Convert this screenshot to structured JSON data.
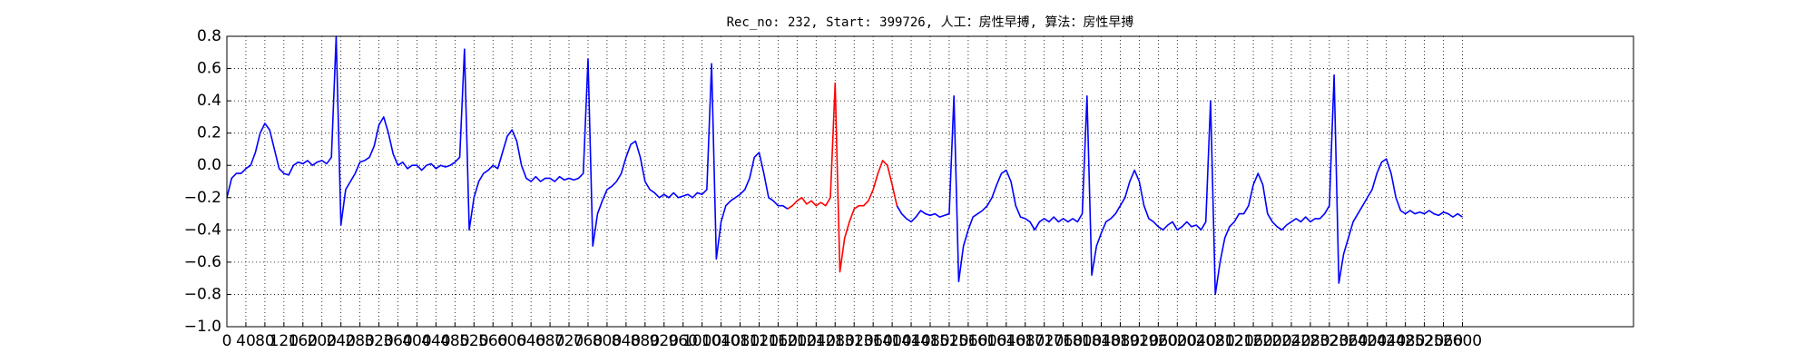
{
  "chart_data": {
    "type": "line",
    "title": "Rec_no: 232, Start: 399726, 人工：房性早搏, 算法：房性早搏",
    "x": [
      0,
      10,
      20,
      30,
      40,
      50,
      60,
      70,
      80,
      90,
      100,
      110,
      120,
      130,
      140,
      150,
      160,
      170,
      180,
      190,
      200,
      210,
      220,
      230,
      240,
      250,
      260,
      270,
      280,
      290,
      300,
      310,
      320,
      330,
      340,
      350,
      360,
      370,
      380,
      390,
      400,
      410,
      420,
      430,
      440,
      450,
      460,
      470,
      480,
      490,
      500,
      510,
      520,
      530,
      540,
      550,
      560,
      570,
      580,
      590,
      600,
      610,
      620,
      630,
      640,
      650,
      660,
      670,
      680,
      690,
      700,
      710,
      720,
      730,
      740,
      750,
      760,
      770,
      780,
      790,
      800,
      810,
      820,
      830,
      840,
      850,
      860,
      870,
      880,
      890,
      900,
      910,
      920,
      930,
      940,
      950,
      960,
      970,
      980,
      990,
      1000,
      1010,
      1020,
      1030,
      1040,
      1050,
      1060,
      1070,
      1080,
      1090,
      1100,
      1110,
      1120,
      1130,
      1140,
      1150,
      1160,
      1170,
      1180,
      1190,
      1200,
      1210,
      1220,
      1230,
      1240,
      1250,
      1260,
      1270,
      1280,
      1290,
      1300,
      1310,
      1320,
      1330,
      1340,
      1350,
      1360,
      1370,
      1380,
      1390,
      1400,
      1410,
      1420,
      1430,
      1440,
      1450,
      1460,
      1470,
      1480,
      1490,
      1500,
      1510,
      1520,
      1530,
      1540,
      1550,
      1560,
      1570,
      1580,
      1590,
      1600,
      1610,
      1620,
      1630,
      1640,
      1650,
      1660,
      1670,
      1680,
      1690,
      1700,
      1710,
      1720,
      1730,
      1740,
      1750,
      1760,
      1770,
      1780,
      1790,
      1800,
      1810,
      1820,
      1830,
      1840,
      1850,
      1860,
      1870,
      1880,
      1890,
      1900,
      1910,
      1920,
      1930,
      1940,
      1950,
      1960,
      1970,
      1980,
      1990,
      2000,
      2010,
      2020,
      2030,
      2040,
      2050,
      2060,
      2070,
      2080,
      2090,
      2100,
      2110,
      2120,
      2130,
      2140,
      2150,
      2160,
      2170,
      2180,
      2190,
      2200,
      2210,
      2220,
      2230,
      2240,
      2250,
      2260,
      2270,
      2280,
      2290,
      2300,
      2310,
      2320,
      2330,
      2340,
      2350,
      2360,
      2370,
      2380,
      2390,
      2400,
      2410,
      2420,
      2430,
      2440,
      2450,
      2460,
      2470,
      2480,
      2490,
      2500,
      2510,
      2520,
      2530,
      2540,
      2550,
      2560,
      2570,
      2580,
      2590,
      2600
    ],
    "series": [
      {
        "color": "#0000ff",
        "values": [
          -0.2,
          -0.08,
          -0.05,
          -0.05,
          -0.02,
          0.0,
          0.08,
          0.2,
          0.26,
          0.22,
          0.1,
          -0.02,
          -0.05,
          -0.06,
          0.0,
          0.02,
          0.01,
          0.03,
          0.0,
          0.02,
          0.03,
          0.01,
          0.05,
          0.8,
          -0.37,
          -0.15,
          -0.1,
          -0.05,
          0.02,
          0.03,
          0.05,
          0.12,
          0.25,
          0.3,
          0.2,
          0.07,
          0.0,
          0.02,
          -0.02,
          0.0,
          0.0,
          -0.03,
          0.0,
          0.01,
          -0.02,
          0.0,
          -0.01,
          0.0,
          0.02,
          0.05,
          0.72,
          -0.4,
          -0.2,
          -0.1,
          -0.05,
          -0.03,
          0.0,
          -0.02,
          0.08,
          0.18,
          0.22,
          0.15,
          0.0,
          -0.08,
          -0.1,
          -0.07,
          -0.1,
          -0.08,
          -0.08,
          -0.1,
          -0.07,
          -0.09,
          -0.08,
          -0.09,
          -0.08,
          -0.05,
          0.66,
          -0.5,
          -0.3,
          -0.22,
          -0.15,
          -0.13,
          -0.1,
          -0.05,
          0.05,
          0.13,
          0.15,
          0.05,
          -0.1,
          -0.15,
          -0.17,
          -0.2,
          -0.18,
          -0.2,
          -0.17,
          -0.2,
          -0.19,
          -0.18,
          -0.2,
          -0.17,
          -0.18,
          -0.15,
          0.63,
          -0.58,
          -0.35,
          -0.25,
          -0.22,
          -0.2,
          -0.18,
          -0.15,
          -0.08,
          0.05,
          0.08,
          -0.05,
          -0.2,
          -0.22,
          -0.25,
          -0.25,
          -0.27,
          null,
          null,
          null,
          null,
          null,
          null,
          null,
          null,
          null,
          null,
          null,
          null,
          null,
          null,
          null,
          null,
          null,
          null,
          null,
          null,
          null,
          null,
          -0.25,
          -0.3,
          -0.33,
          -0.35,
          -0.32,
          -0.28,
          -0.3,
          -0.31,
          -0.3,
          -0.32,
          -0.31,
          -0.3,
          0.43,
          -0.72,
          -0.5,
          -0.4,
          -0.32,
          -0.3,
          -0.28,
          -0.25,
          -0.2,
          -0.12,
          -0.05,
          -0.03,
          -0.1,
          -0.25,
          -0.32,
          -0.33,
          -0.35,
          -0.4,
          -0.35,
          -0.33,
          -0.35,
          -0.32,
          -0.35,
          -0.33,
          -0.35,
          -0.33,
          -0.35,
          -0.3,
          0.43,
          -0.68,
          -0.5,
          -0.42,
          -0.35,
          -0.33,
          -0.3,
          -0.25,
          -0.2,
          -0.1,
          -0.03,
          -0.1,
          -0.25,
          -0.33,
          -0.35,
          -0.38,
          -0.4,
          -0.37,
          -0.35,
          -0.4,
          -0.38,
          -0.35,
          -0.38,
          -0.37,
          -0.4,
          -0.35,
          0.4,
          -0.8,
          -0.6,
          -0.45,
          -0.38,
          -0.35,
          -0.3,
          -0.3,
          -0.25,
          -0.12,
          -0.05,
          -0.12,
          -0.3,
          -0.35,
          -0.38,
          -0.4,
          -0.37,
          -0.35,
          -0.33,
          -0.35,
          -0.32,
          -0.35,
          -0.33,
          -0.33,
          -0.3,
          -0.25,
          0.56,
          -0.73,
          -0.55,
          -0.45,
          -0.35,
          -0.3,
          -0.25,
          -0.2,
          -0.15,
          -0.05,
          0.02,
          0.04,
          -0.05,
          -0.2,
          -0.28,
          -0.3,
          -0.28,
          -0.3,
          -0.29,
          -0.3,
          -0.28,
          -0.3,
          -0.31,
          -0.29,
          -0.3,
          -0.32,
          -0.3,
          -0.32
        ]
      },
      {
        "color": "#ff0000",
        "values": [
          null,
          null,
          null,
          null,
          null,
          null,
          null,
          null,
          null,
          null,
          null,
          null,
          null,
          null,
          null,
          null,
          null,
          null,
          null,
          null,
          null,
          null,
          null,
          null,
          null,
          null,
          null,
          null,
          null,
          null,
          null,
          null,
          null,
          null,
          null,
          null,
          null,
          null,
          null,
          null,
          null,
          null,
          null,
          null,
          null,
          null,
          null,
          null,
          null,
          null,
          null,
          null,
          null,
          null,
          null,
          null,
          null,
          null,
          null,
          null,
          null,
          null,
          null,
          null,
          null,
          null,
          null,
          null,
          null,
          null,
          null,
          null,
          null,
          null,
          null,
          null,
          null,
          null,
          null,
          null,
          null,
          null,
          null,
          null,
          null,
          null,
          null,
          null,
          null,
          null,
          null,
          null,
          null,
          null,
          null,
          null,
          null,
          null,
          null,
          null,
          null,
          null,
          null,
          null,
          null,
          null,
          null,
          null,
          null,
          null,
          null,
          null,
          null,
          null,
          null,
          null,
          null,
          null,
          -0.27,
          -0.25,
          -0.22,
          -0.2,
          -0.24,
          -0.22,
          -0.25,
          -0.23,
          -0.25,
          -0.2,
          0.51,
          -0.66,
          -0.45,
          -0.35,
          -0.27,
          -0.25,
          -0.25,
          -0.22,
          -0.15,
          -0.05,
          0.03,
          0.0,
          -0.12,
          -0.25,
          null,
          null,
          null,
          null,
          null,
          null,
          null,
          null,
          null,
          null,
          null,
          null,
          null,
          null,
          null,
          null,
          null,
          null,
          null,
          null,
          null,
          null,
          null,
          null,
          null,
          null,
          null,
          null,
          null,
          null,
          null,
          null,
          null,
          null,
          null,
          null,
          null,
          null,
          null,
          null,
          null,
          null,
          null,
          null,
          null,
          null,
          null,
          null,
          null,
          null,
          null,
          null,
          null,
          null,
          null,
          null,
          null,
          null,
          null,
          null,
          null,
          null,
          null,
          null,
          null,
          null,
          null,
          null,
          null,
          null,
          null,
          null,
          null,
          null,
          null,
          null,
          null,
          null,
          null,
          null,
          null,
          null,
          null,
          null,
          null,
          null,
          null,
          null,
          null,
          null,
          null,
          null,
          null,
          null,
          null,
          null,
          null,
          null,
          null,
          null,
          null,
          null,
          null,
          null,
          null,
          null,
          null,
          null,
          null,
          null,
          null,
          null,
          null,
          null,
          null,
          null,
          null,
          null,
          null
        ]
      }
    ],
    "xlim": [
      0,
      2960
    ],
    "xticks": [
      0,
      40,
      80,
      120,
      160,
      200,
      240,
      280,
      320,
      360,
      400,
      440,
      480,
      520,
      560,
      600,
      640,
      680,
      720,
      760,
      800,
      840,
      880,
      920,
      960,
      1000,
      1040,
      1080,
      1120,
      1160,
      1200,
      1240,
      1280,
      1320,
      1360,
      1400,
      1440,
      1480,
      1520,
      1560,
      1600,
      1640,
      1680,
      1720,
      1760,
      1800,
      1840,
      1880,
      1920,
      1960,
      2000,
      2040,
      2080,
      2120,
      2160,
      2200,
      2240,
      2280,
      2320,
      2360,
      2400,
      2440,
      2480,
      2520,
      2560,
      2600
    ],
    "ylim": [
      -1,
      0.8
    ],
    "yticks": [
      {
        "value": -1,
        "label": "−1.0"
      },
      {
        "value": -0.8,
        "label": "−0.8"
      },
      {
        "value": -0.6,
        "label": "−0.6"
      },
      {
        "value": -0.4,
        "label": "−0.4"
      },
      {
        "value": -0.2,
        "label": "−0.2"
      },
      {
        "value": 0,
        "label": "0.0"
      },
      0.2,
      0.4,
      0.6,
      0.8
    ],
    "grid": true
  }
}
